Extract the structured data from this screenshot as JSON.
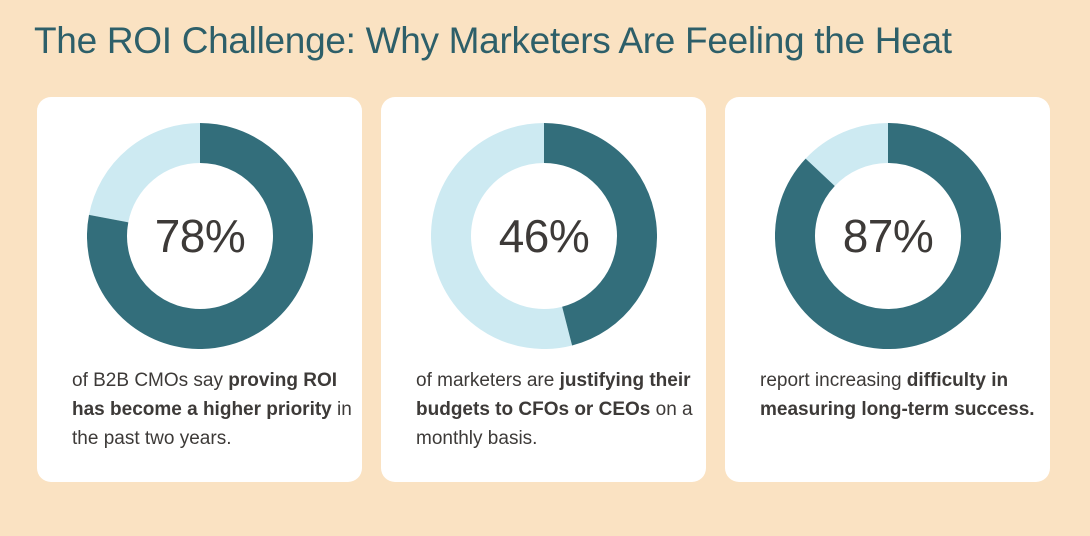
{
  "title": "The ROI Challenge: Why Marketers Are Feeling the Heat",
  "colors": {
    "background": "#FAE2C2",
    "card": "#FFFFFF",
    "filled": "#336E7B",
    "remainder": "#CDEAF2",
    "title": "#2D5F69",
    "text": "#3D3A38"
  },
  "chart_data": [
    {
      "type": "pie",
      "variant": "donut",
      "value": 78,
      "remainder": 22,
      "label": "78%",
      "caption_parts": [
        {
          "text": "of B2B CMOs say ",
          "bold": false
        },
        {
          "text": "proving ROI has become a higher priority",
          "bold": true
        },
        {
          "text": " in the past two years.",
          "bold": false
        }
      ]
    },
    {
      "type": "pie",
      "variant": "donut",
      "value": 46,
      "remainder": 54,
      "label": "46%",
      "caption_parts": [
        {
          "text": "of marketers are ",
          "bold": false
        },
        {
          "text": "justifying their budgets to CFOs or CEOs",
          "bold": true
        },
        {
          "text": " on a monthly basis.",
          "bold": false
        }
      ]
    },
    {
      "type": "pie",
      "variant": "donut",
      "value": 87,
      "remainder": 13,
      "label": "87%",
      "caption_parts": [
        {
          "text": "report increasing ",
          "bold": false
        },
        {
          "text": "difficulty in measuring long-term success.",
          "bold": true
        }
      ]
    }
  ]
}
